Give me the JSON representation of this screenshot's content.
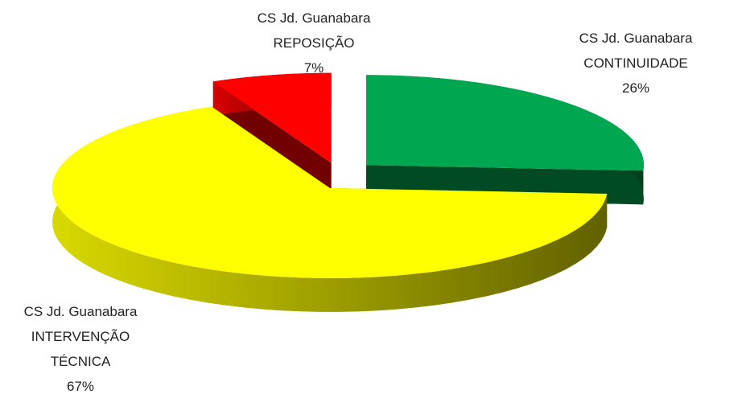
{
  "chart_data": {
    "type": "pie",
    "categories": [
      [
        "CS Jd. Guanabara",
        "CONTINUIDADE"
      ],
      [
        "CS Jd. Guanabara",
        "INTERVENÇÃO",
        "TÉCNICA"
      ],
      [
        "CS Jd. Guanabara",
        "REPOSIÇÃO"
      ]
    ],
    "values": [
      26,
      67,
      7
    ],
    "value_labels": [
      "26%",
      "67%",
      "7%"
    ],
    "colors": [
      "#00a650",
      "#ffff00",
      "#ff0000"
    ]
  }
}
